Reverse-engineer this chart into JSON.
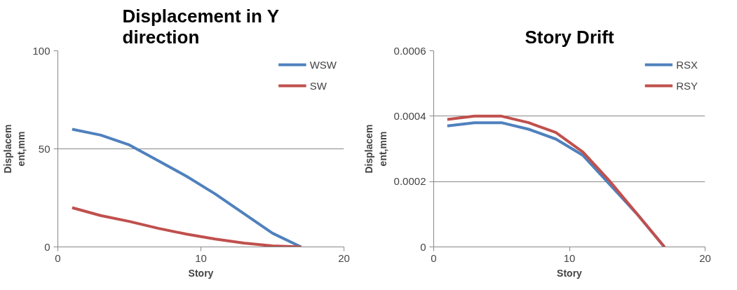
{
  "chart_data": [
    {
      "type": "line",
      "title": "Displacement in Y direction",
      "xlabel": "Story",
      "ylabel": "Displacement,mm",
      "x": [
        1,
        3,
        5,
        7,
        9,
        11,
        13,
        15,
        17
      ],
      "series": [
        {
          "name": "WSW",
          "color": "#4f81bd",
          "values": [
            60,
            57,
            52,
            44,
            36,
            27,
            17,
            7,
            0
          ]
        },
        {
          "name": "SW",
          "color": "#c0504d",
          "values": [
            20,
            16,
            13,
            9.5,
            6.5,
            4,
            2,
            0.5,
            0
          ]
        }
      ],
      "xlim": [
        0,
        20
      ],
      "xticks": [
        0,
        10,
        20
      ],
      "ylim": [
        0,
        100
      ],
      "yticks": [
        0,
        50,
        100
      ],
      "grid": "y",
      "legend": "top right",
      "line_style": "solid"
    },
    {
      "type": "line",
      "title": "Story Drift",
      "xlabel": "Story",
      "ylabel": "Displacement,mm",
      "x": [
        1,
        3,
        5,
        7,
        9,
        11,
        13,
        15,
        17
      ],
      "series": [
        {
          "name": "RSX",
          "color": "#4f81bd",
          "values": [
            0.00037,
            0.00038,
            0.00038,
            0.00036,
            0.00033,
            0.00028,
            0.00019,
            0.0001,
            0
          ]
        },
        {
          "name": "RSY",
          "color": "#c0504d",
          "values": [
            0.00039,
            0.0004,
            0.0004,
            0.00038,
            0.00035,
            0.00029,
            0.0002,
            0.0001,
            0
          ]
        }
      ],
      "xlim": [
        0,
        20
      ],
      "xticks": [
        0,
        10,
        20
      ],
      "ylim": [
        0,
        0.0006
      ],
      "yticks": [
        0,
        0.0002,
        0.0004,
        0.0006
      ],
      "grid": "y",
      "legend": "top right",
      "line_style": "solid"
    }
  ]
}
